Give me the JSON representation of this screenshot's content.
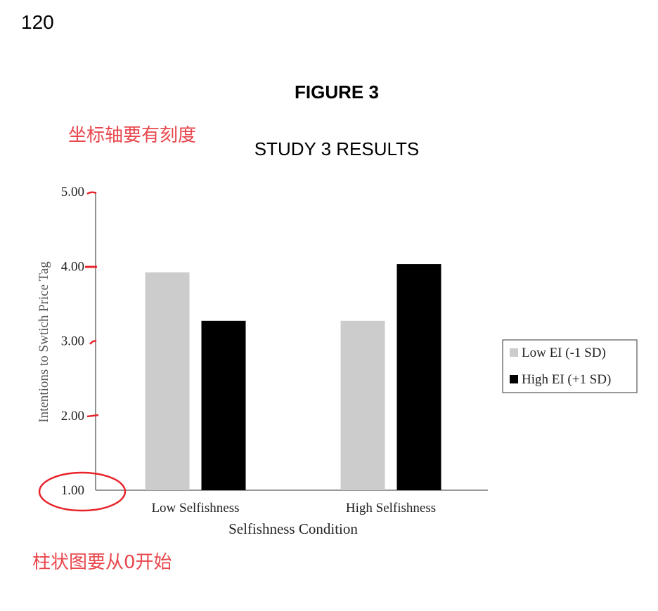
{
  "page_number": "120",
  "figure_label": "FIGURE 3",
  "figure_title": "STUDY 3 RESULTS",
  "annotations": {
    "top_note": "坐标轴要有刻度",
    "bottom_note": "柱状图要从0开始",
    "annotation_color": "#e8474d"
  },
  "chart_data": {
    "type": "bar",
    "title": "STUDY 3 RESULTS",
    "xlabel": "Selfishness Condition",
    "ylabel": "Intentions to Swtich Price Tag",
    "categories": [
      "Low Selfishness",
      "High Selfishness"
    ],
    "series": [
      {
        "name": "Low EI (-1 SD)",
        "color": "#cccccc",
        "values": [
          3.92,
          3.27
        ]
      },
      {
        "name": "High EI (+1 SD)",
        "color": "#000000",
        "values": [
          3.27,
          4.03
        ]
      }
    ],
    "ylim": [
      1.0,
      5.0
    ],
    "yticks": [
      "5.00",
      "4.00",
      "3.00",
      "2.00",
      "1.00"
    ],
    "legend_position": "right",
    "grid": false
  }
}
